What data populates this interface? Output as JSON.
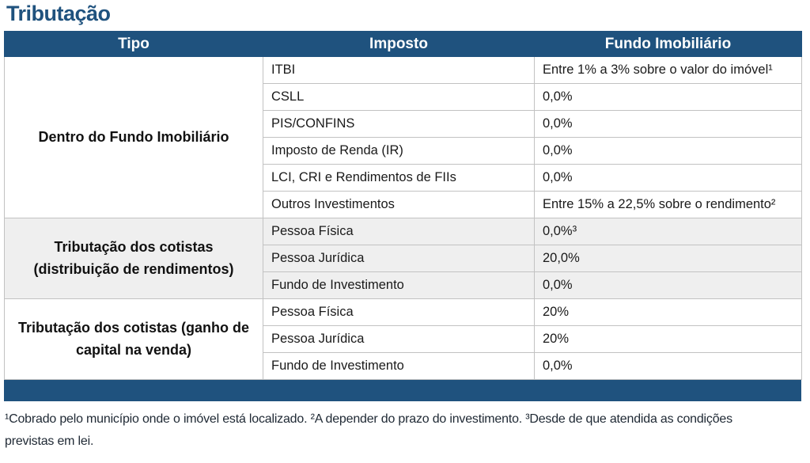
{
  "title": "Tributação",
  "colors": {
    "header_bg": "#1F527E",
    "header_text": "#ffffff",
    "alt_band_bg": "#EFEFEF",
    "grid_line": "#c2c2c2",
    "title_text": "#1F527E"
  },
  "table": {
    "columns": [
      "Tipo",
      "Imposto",
      "Fundo Imobiliário"
    ],
    "groups": [
      {
        "tipo": "Dentro do Fundo Imobiliário",
        "rows": [
          {
            "imposto": "ITBI",
            "valor": "Entre 1% a 3% sobre o valor do imóvel¹"
          },
          {
            "imposto": "CSLL",
            "valor": "0,0%"
          },
          {
            "imposto": "PIS/CONFINS",
            "valor": "0,0%"
          },
          {
            "imposto": "Imposto de Renda (IR)",
            "valor": "0,0%"
          },
          {
            "imposto": "LCI, CRI e Rendimentos de FIIs",
            "valor": "0,0%"
          },
          {
            "imposto": "Outros Investimentos",
            "valor": "Entre 15% a 22,5% sobre o rendimento²"
          }
        ]
      },
      {
        "tipo": "Tributação dos cotistas (distribuição de rendimentos)",
        "rows": [
          {
            "imposto": "Pessoa Física",
            "valor": "0,0%³"
          },
          {
            "imposto": "Pessoa Jurídica",
            "valor": "20,0%"
          },
          {
            "imposto": "Fundo de Investimento",
            "valor": "0,0%"
          }
        ]
      },
      {
        "tipo": "Tributação dos cotistas (ganho de capital na venda)",
        "rows": [
          {
            "imposto": "Pessoa Física",
            "valor": "20%"
          },
          {
            "imposto": "Pessoa Jurídica",
            "valor": "20%"
          },
          {
            "imposto": "Fundo de Investimento",
            "valor": "0,0%"
          }
        ]
      }
    ]
  },
  "footnote": "¹Cobrado pelo município onde o imóvel está localizado. ²A depender do prazo do investimento. ³Desde de que atendida as condições previstas em lei."
}
